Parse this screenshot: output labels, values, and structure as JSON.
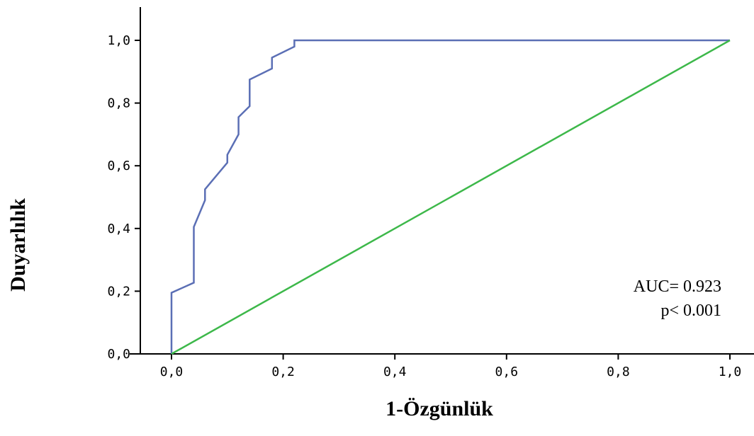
{
  "chart_data": {
    "type": "line",
    "title": "",
    "xlabel": "1-Özgünlük",
    "ylabel": "Duyarlılık",
    "xlim": [
      0,
      1
    ],
    "ylim": [
      0,
      1
    ],
    "grid": false,
    "x_ticks": [
      "0,0",
      "0,2",
      "0,4",
      "0,6",
      "0,8",
      "1,0"
    ],
    "y_ticks": [
      "0,0",
      "0,2",
      "0,4",
      "0,6",
      "0,8",
      "1,0"
    ],
    "series": [
      {
        "color": "#5b6fb5",
        "x": [
          0,
          0,
          0.04,
          0.04,
          0.06,
          0.06,
          0.1,
          0.1,
          0.12,
          0.12,
          0.14,
          0.14,
          0.18,
          0.18,
          0.22,
          0.22,
          1.0
        ],
        "y": [
          0,
          0.195,
          0.227,
          0.405,
          0.49,
          0.525,
          0.61,
          0.635,
          0.7,
          0.755,
          0.79,
          0.875,
          0.91,
          0.945,
          0.98,
          1.0,
          1.0
        ]
      },
      {
        "color": "#3db84a",
        "x": [
          0,
          1
        ],
        "y": [
          0,
          1
        ]
      }
    ],
    "annotations": [
      "AUC= 0.923",
      "p< 0.001"
    ]
  }
}
